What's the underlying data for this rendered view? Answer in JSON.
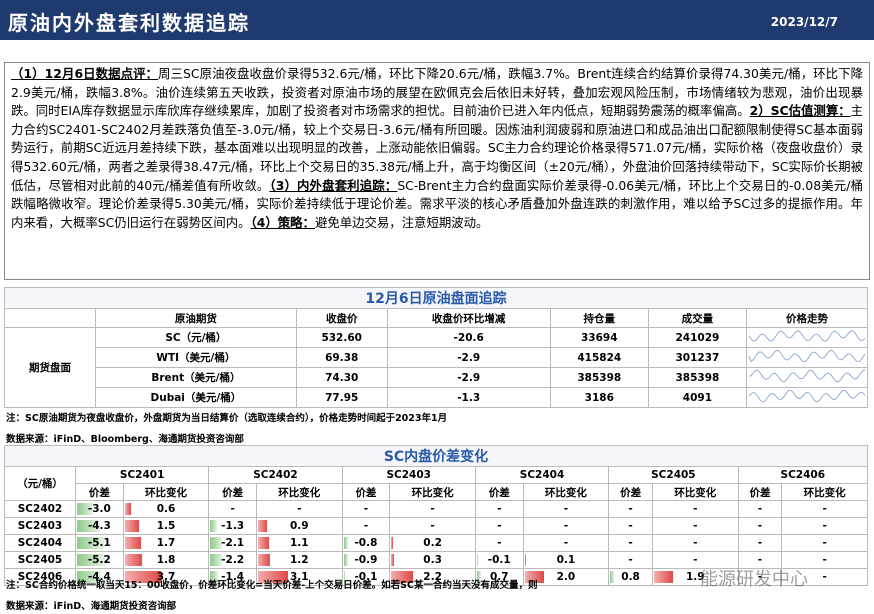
{
  "header": {
    "title": "原油内外盘套利数据追踪",
    "date": "2023/12/7"
  },
  "commentary": {
    "sections": [
      {
        "label": "（1）12月6日数据点评：",
        "text": "周三SC原油夜盘收盘价录得532.6元/桶，环比下降20.6元/桶，跌幅3.7%。Brent连续合约结算价录得74.30美元/桶，环比下降2.9美元/桶，跌幅3.8%。油价连续第五天收跌，投资者对原油市场的展望在欧佩克会后依旧未好转，叠加宏观风险压制，市场情绪较为悲观，油价出现暴跌。同时EIA库存数据显示库欣库存继续累库，加剧了投资者对市场需求的担忧。目前油价已进入年内低点，短期弱势震荡的概率偏高。"
      },
      {
        "label": "2）SC估值测算：",
        "text": "主力合约SC2401-SC2402月差跌落负值至-3.0元/桶，较上个交易日-3.6元/桶有所回暖。因炼油利润疲弱和原油进口和成品油出口配额限制使得SC基本面弱势运行，前期SC近远月差持续下跌，基本面难以出现明显的改善，上涨动能依旧偏弱。SC主力合约理论价格录得571.07元/桶，实际价格（夜盘收盘价）录得532.60元/桶，两者之差录得38.47元/桶，环比上个交易日的35.38元/桶上升，高于均衡区间（±20元/桶），外盘油价回落持续带动下，SC实际价长期被低估，尽管相对此前的40元/桶差值有所收敛。"
      },
      {
        "label": "（3）内外盘套利追踪：",
        "text": "SC-Brent主力合约盘面实际价差录得-0.06美元/桶，环比上个交易日的-0.08美元/桶跌幅略微收窄。理论价差录得5.30美元/桶，实际价差持续低于理论价差。需求平淡的核心矛盾叠加外盘连跌的刺激作用，难以给予SC过多的提振作用。年内来看，大概率SC仍旧运行在弱势区间内。"
      },
      {
        "label": "（4）策略：",
        "text": "避免单边交易，注意短期波动。"
      }
    ]
  },
  "futures_table": {
    "title": "12月6日原油盘面追踪",
    "row_group": "期货盘面",
    "headers": [
      "原油期货",
      "收盘价",
      "收盘价环比增减",
      "持仓量",
      "成交量",
      "价格走势"
    ],
    "rows": [
      [
        "SC（元/桶）",
        "532.60",
        "-20.6",
        "33694",
        "241029"
      ],
      [
        "WTI（美元/桶）",
        "69.38",
        "-2.9",
        "415824",
        "301237"
      ],
      [
        "Brent（美元/桶）",
        "74.30",
        "-2.9",
        "385398",
        "385398"
      ],
      [
        "Dubai（美元/桶）",
        "77.95",
        "-1.3",
        "3186",
        "4091"
      ]
    ],
    "note": "注：SC原油期货为夜盘收盘价，外盘期货为当日结算价（选取连续合约），价格走势时间起于2023年1月",
    "source": "数据来源：iFinD、Bloomberg、海通期货投资咨询部"
  },
  "spread_table": {
    "title": "SC内盘价差变化",
    "unit": "（元/桶）",
    "contracts": [
      "SC2401",
      "SC2402",
      "SC2403",
      "SC2404",
      "SC2405",
      "SC2406"
    ],
    "subheaders": [
      "价差",
      "环比变化"
    ],
    "rows": [
      {
        "label": "SC2402",
        "cells": [
          "-3.0",
          "0.6",
          "-",
          "-",
          "-",
          "-",
          "-",
          "-",
          "-",
          "-",
          "-",
          "-"
        ]
      },
      {
        "label": "SC2403",
        "cells": [
          "-4.3",
          "1.5",
          "-1.3",
          "0.9",
          "-",
          "-",
          "-",
          "-",
          "-",
          "-",
          "-",
          "-"
        ]
      },
      {
        "label": "SC2404",
        "cells": [
          "-5.1",
          "1.7",
          "-2.1",
          "1.1",
          "-0.8",
          "0.2",
          "-",
          "-",
          "-",
          "-",
          "-",
          "-"
        ]
      },
      {
        "label": "SC2405",
        "cells": [
          "-5.2",
          "1.8",
          "-2.2",
          "1.2",
          "-0.9",
          "0.3",
          "-0.1",
          "0.1",
          "-",
          "-",
          "-",
          "-"
        ]
      },
      {
        "label": "SC2406",
        "cells": [
          "-4.4",
          "3.7",
          "-1.4",
          "3.1",
          "-0.1",
          "2.2",
          "0.7",
          "2.0",
          "0.8",
          "1.9",
          "-",
          "-"
        ]
      }
    ],
    "note": "注：SC合约价格统一取当天15：00收盘价，价差环比变化=当天价差-上个交易日价差。如若SC某一合约当天没有成交量，则",
    "source": "数据来源：iFinD、海通期货投资咨询部"
  },
  "watermark": "能源研发中心"
}
